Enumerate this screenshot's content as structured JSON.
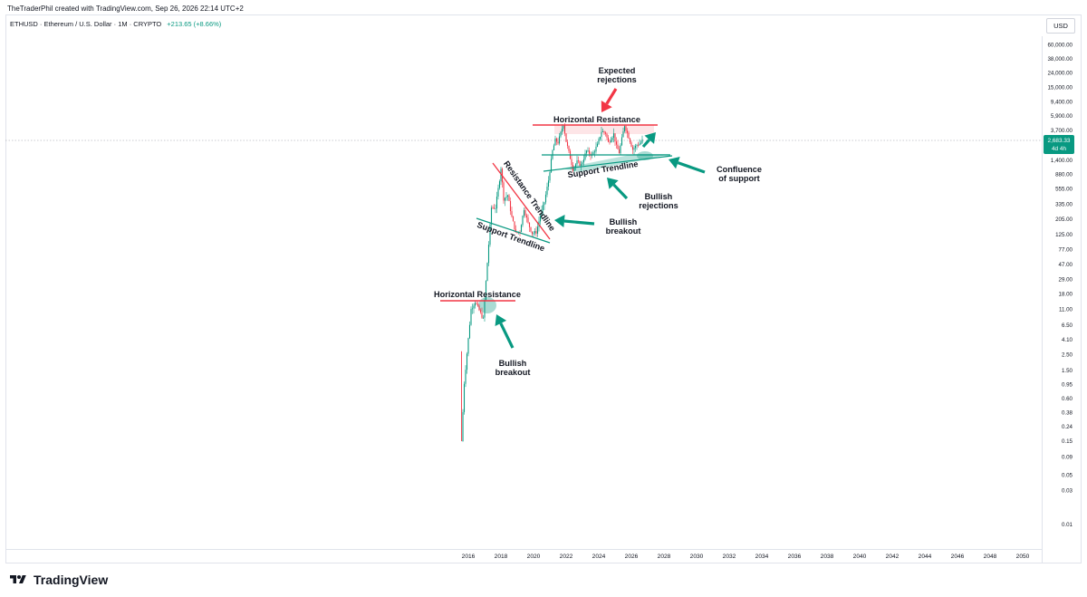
{
  "header": {
    "credit": "TheTraderPhil created with TradingView.com, Sep 26, 2026 22:14 UTC+2"
  },
  "symbol_bar": {
    "symbol": "ETHUSD · Ethereum / U.S. Dollar · 1M · CRYPTO",
    "change": "+213.65 (+8.66%)"
  },
  "price_scale": {
    "currency": "USD",
    "current_price": "2,683.33",
    "countdown": "4d 4h"
  },
  "branding": {
    "logo_text": "TradingView"
  },
  "colors": {
    "up": "#089981",
    "down": "#f23645",
    "resistance": "#f23645",
    "support": "#089981",
    "arrow_green": "#089981",
    "arrow_red": "#f23645"
  },
  "chart_data": {
    "type": "candlestick",
    "scale": "log",
    "timeframe": "1M",
    "x_ticks": [
      "2016",
      "2018",
      "2020",
      "2022",
      "2024",
      "2026",
      "2028",
      "2030",
      "2032",
      "2034",
      "2036",
      "2038",
      "2040",
      "2042",
      "2044",
      "2046",
      "2048",
      "2050"
    ],
    "y_ticks": [
      "60,000.00",
      "38,000.00",
      "24,000.00",
      "15,000.00",
      "9,400.00",
      "5,900.00",
      "3,700.00",
      "1,400.00",
      "880.00",
      "555.00",
      "335.00",
      "205.00",
      "125.00",
      "77.00",
      "47.00",
      "29.00",
      "18.00",
      "11.00",
      "6.50",
      "4.10",
      "2.50",
      "1.50",
      "0.95",
      "0.60",
      "0.38",
      "0.24",
      "0.15",
      "0.09",
      "0.05",
      "0.03",
      "0.01"
    ],
    "price_path": [
      [
        "2015-08",
        0.15
      ],
      [
        "2015-10",
        1.0
      ],
      [
        "2016-03",
        11
      ],
      [
        "2016-06",
        14
      ],
      [
        "2016-12",
        8
      ],
      [
        "2017-03",
        50
      ],
      [
        "2017-06",
        300
      ],
      [
        "2017-09",
        300
      ],
      [
        "2017-12",
        750
      ],
      [
        "2018-01",
        1100
      ],
      [
        "2018-03",
        400
      ],
      [
        "2018-06",
        450
      ],
      [
        "2018-09",
        220
      ],
      [
        "2018-12",
        130
      ],
      [
        "2019-03",
        140
      ],
      [
        "2019-06",
        290
      ],
      [
        "2019-09",
        180
      ],
      [
        "2019-12",
        130
      ],
      [
        "2020-03",
        135
      ],
      [
        "2020-06",
        230
      ],
      [
        "2020-09",
        360
      ],
      [
        "2020-12",
        730
      ],
      [
        "2021-03",
        1900
      ],
      [
        "2021-05",
        2700
      ],
      [
        "2021-07",
        2500
      ],
      [
        "2021-11",
        4600
      ],
      [
        "2022-01",
        2600
      ],
      [
        "2022-06",
        1050
      ],
      [
        "2022-09",
        1330
      ],
      [
        "2022-12",
        1200
      ],
      [
        "2023-04",
        1900
      ],
      [
        "2023-08",
        1650
      ],
      [
        "2023-12",
        2300
      ],
      [
        "2024-03",
        3600
      ],
      [
        "2024-06",
        3400
      ],
      [
        "2024-08",
        2500
      ],
      [
        "2024-12",
        3300
      ],
      [
        "2025-02",
        2200
      ],
      [
        "2025-04",
        1800
      ],
      [
        "2025-08",
        4400
      ],
      [
        "2025-11",
        3000
      ],
      [
        "2026-02",
        2000
      ],
      [
        "2026-05",
        2300
      ],
      [
        "2026-08",
        2470
      ],
      [
        "2026-09",
        2683.33
      ]
    ],
    "annotations": [
      "Expected",
      "rejections",
      "Horizontal Resistance",
      "Support Trendline",
      "Confluence",
      "of support",
      "Bullish",
      "rejections",
      "Resistance Trendline",
      "Support Trendline",
      "Bullish",
      "breakout",
      "Horizontal Resistance",
      "Bullish",
      "breakout"
    ]
  }
}
